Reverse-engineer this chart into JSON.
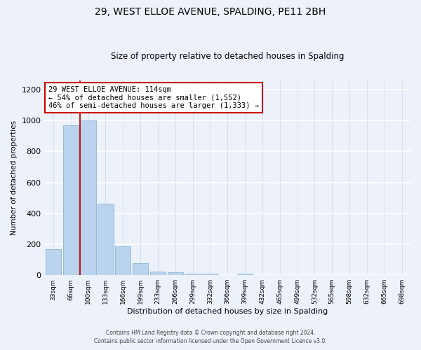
{
  "title": "29, WEST ELLOE AVENUE, SPALDING, PE11 2BH",
  "subtitle": "Size of property relative to detached houses in Spalding",
  "xlabel": "Distribution of detached houses by size in Spalding",
  "ylabel": "Number of detached properties",
  "bar_color": "#bad4ed",
  "bar_edge_color": "#8ab4d8",
  "categories": [
    "33sqm",
    "66sqm",
    "100sqm",
    "133sqm",
    "166sqm",
    "199sqm",
    "233sqm",
    "266sqm",
    "299sqm",
    "332sqm",
    "366sqm",
    "399sqm",
    "432sqm",
    "465sqm",
    "499sqm",
    "532sqm",
    "565sqm",
    "598sqm",
    "632sqm",
    "665sqm",
    "698sqm"
  ],
  "values": [
    170,
    970,
    1000,
    460,
    185,
    80,
    25,
    18,
    12,
    8,
    0,
    12,
    0,
    0,
    0,
    0,
    0,
    0,
    0,
    0,
    0
  ],
  "red_line_bin_index": 2,
  "annotation_title": "29 WEST ELLOE AVENUE: 114sqm",
  "annotation_line1": "← 54% of detached houses are smaller (1,552)",
  "annotation_line2": "46% of semi-detached houses are larger (1,333) →",
  "annotation_box_color": "#ffffff",
  "annotation_box_edge_color": "#cc0000",
  "footer1": "Contains HM Land Registry data © Crown copyright and database right 2024.",
  "footer2": "Contains public sector information licensed under the Open Government Licence v3.0.",
  "ylim": [
    0,
    1260
  ],
  "background_color": "#edf2fa",
  "grid_color": "#d0daea"
}
